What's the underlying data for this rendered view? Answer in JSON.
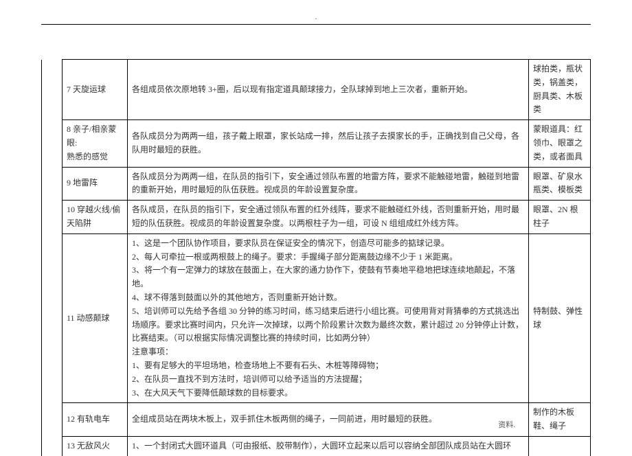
{
  "header_dot": ".",
  "footer": "资料.",
  "rows": [
    {
      "name": "7 天旋运球",
      "desc": "各组成员依次原地转 3+圈，后以现有指定道具颠球接力，全队球掉到地上三次者，重新开始。",
      "material": "球拍类，瓶状类，锅盖类，厨具类、木板类"
    },
    {
      "name": "8 亲子/相亲蒙眼:\n熟悉的感觉",
      "desc": "各队成员分为两两一组，孩子戴上眼罩，家长站成一排，然后让孩子去摸家长的手，正确找到自己父母，各队用时最短的获胜。",
      "material": "蒙眼道具：红领巾、眼罩之类，或者面具"
    },
    {
      "name": "9 地雷阵",
      "desc": "各队成员分为两两一组，在队员的指引下，安全通过领队布置的地雷方阵，要求不能触碰地雷，触碰到地雷的重新开始，用时最短的队伍获胜。视成员的年龄设置复杂度。",
      "material": "眼罩、矿泉水瓶类、模板类"
    },
    {
      "name": "10 穿越火线/偷天陷阱",
      "desc": "各队成员，在队员的指引下，安全通过领队布置的红外线阵，要求不能触碰红外线，否则重新开始，用时最短的队伍获胜。视成员的年龄设置复杂度。以两根柱子为一组，可设 N 组组成红外线方阵。",
      "material": "眼罩、2N 根柱子"
    },
    {
      "name": "11 动感颠球",
      "desc": "1、这是一个团队协作项目，要求队员在保证安全的情况下，创造尽可能多的掂球记录。\n2、每人可牵拉一根或两根鼓上的绳子。要求：手握绳子部分距离鼓边缘不少于 1 米距离。\n3、将一个有一定弹力的球放在鼓面上，在大家的通力协作下，使鼓有节奏地平稳地把球连续地颠起，不落地。\n4、球不得落到鼓面以外的其他地方，否则重新开始计数。\n5、培训师可以先给予各组 30 分钟的练习时间，练习结束后进行小组比赛。可使用背对背猜拳的方式挑选出场顺序。要求比赛时间内，只允许一次掉球，以两个阶段累计次数为最终次数，累计超过 20 分钟停止计数，比赛结束。（可以根据实际情况调整比赛的持续时间，比如两分钟）\n注意事项：\n1、要有足够大的平坦场地，检查场地上不要有石头、木桩等障碍物；\n2、在队员一直找不到方法时，培训师可以给予适当的方法提醒；\n3、在大风天气下要降低颠球数的目标要求。",
      "material": "特制鼓、弹性球"
    },
    {
      "name": "12 有轨电车",
      "desc": "全组成员站在两块木板上，双手抓住木板两侧的绳子，一同前进，用时最短的获胜。",
      "material": "制作的木板鞋、绳子"
    },
    {
      "name": "13 无敌风火",
      "desc": "1、一个封闭式大圆环道具（可由报纸、胶带制作），大圆环立起来以后可以容纳全部团队成员站在大圆环",
      "material": ""
    }
  ]
}
